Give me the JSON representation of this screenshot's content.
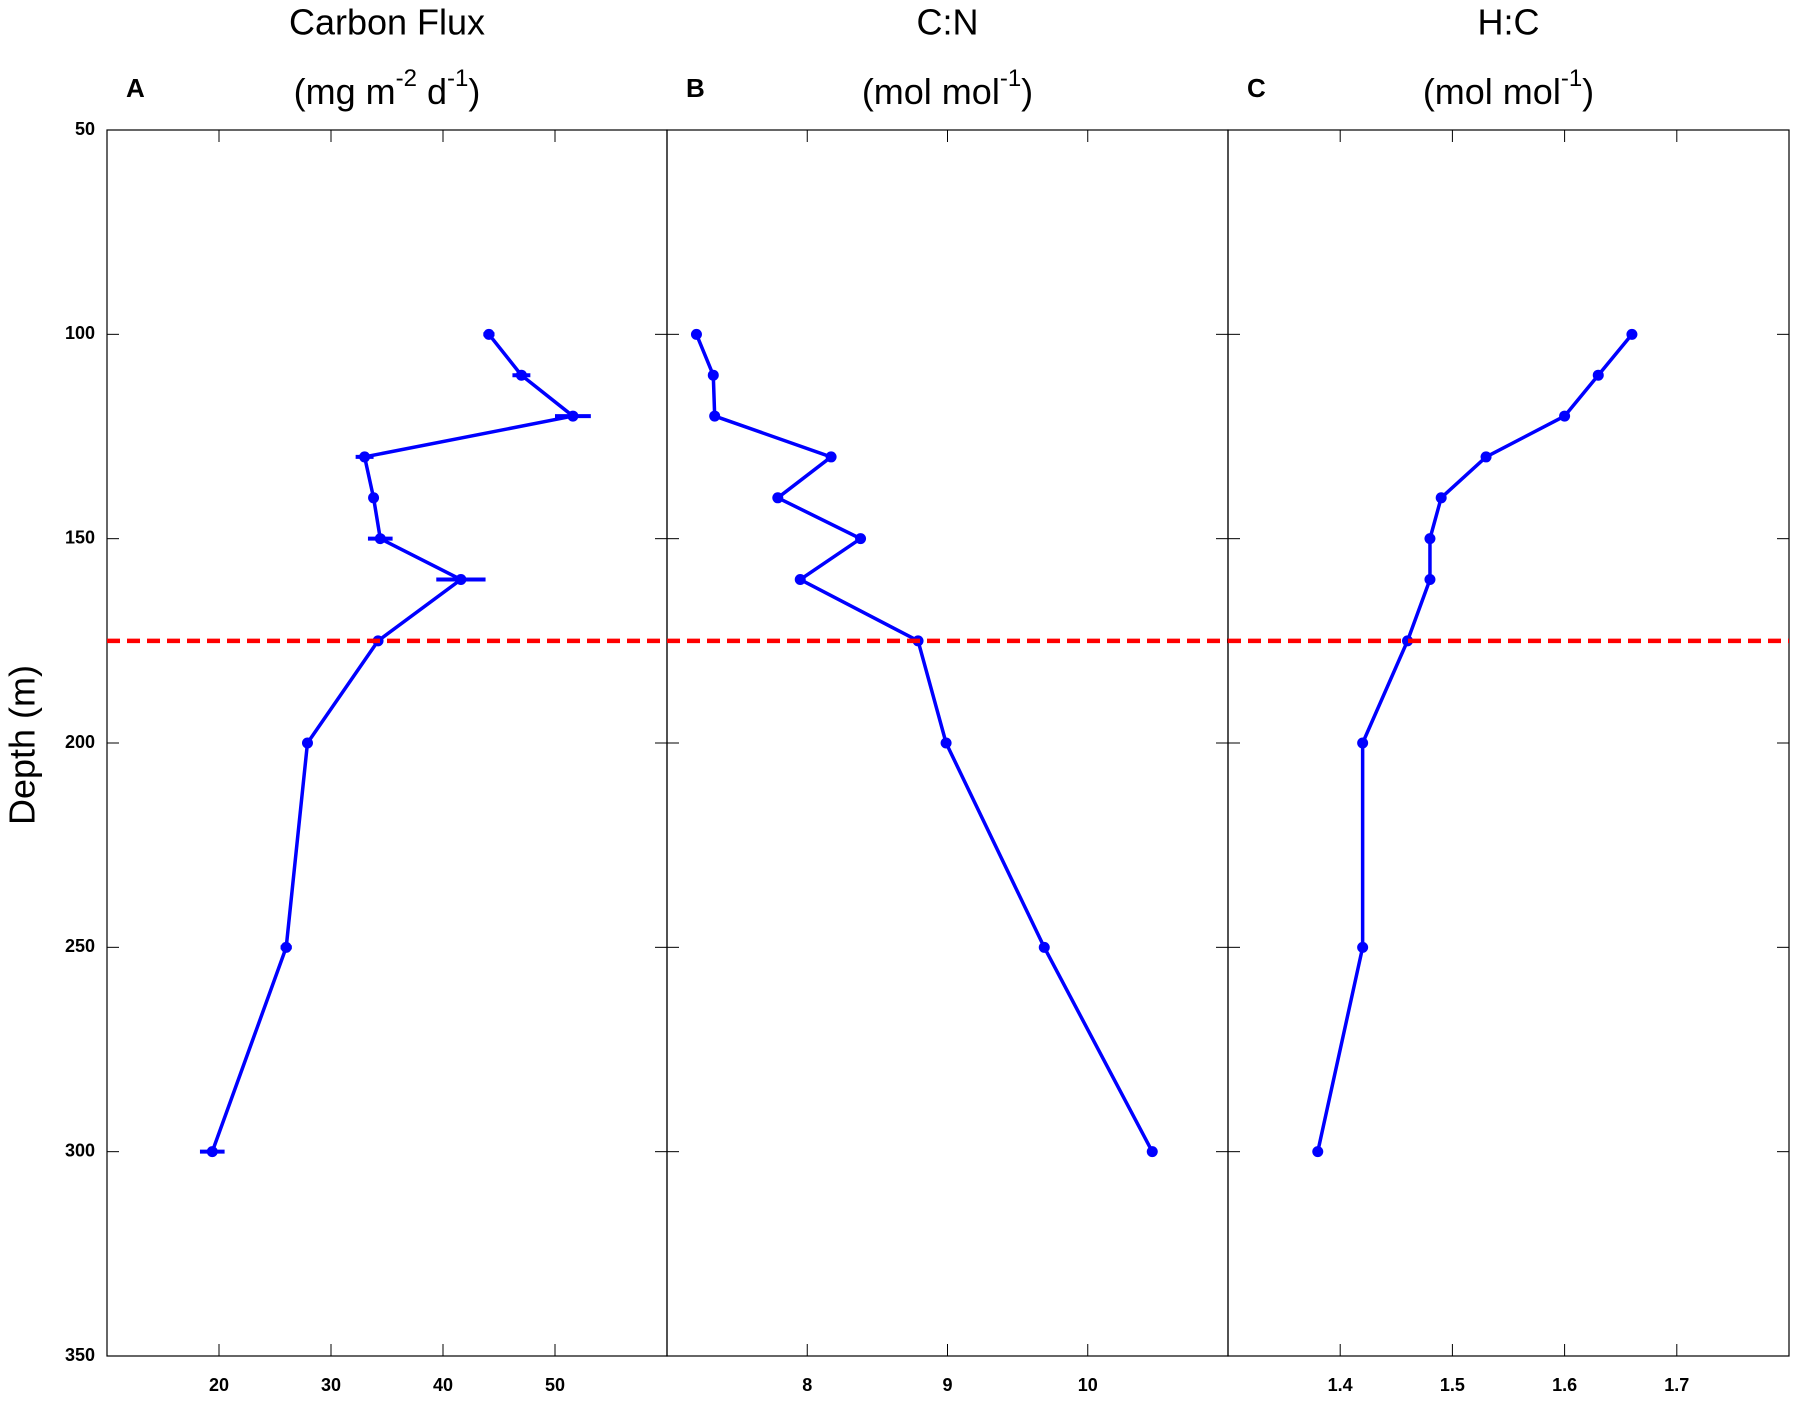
{
  "chart_data": [
    {
      "type": "line",
      "panel_label": "A",
      "title": "Carbon Flux",
      "unit": [
        "(mg m",
        "-2",
        " d",
        "-1",
        ")"
      ],
      "ylabel": "Depth (m)",
      "y": [
        100,
        110,
        120,
        130,
        140,
        150,
        160,
        175,
        200,
        250,
        300
      ],
      "ylim": [
        350,
        50
      ],
      "yticks": [
        50,
        100,
        150,
        200,
        250,
        300,
        350
      ],
      "xlim": [
        10,
        60
      ],
      "xticks": [
        20,
        30,
        40,
        50
      ],
      "series": [
        {
          "color": "#0000ff",
          "values": [
            44.1,
            47,
            51.6,
            33,
            33.8,
            34.4,
            41.6,
            34.2,
            27.9,
            26,
            19.4
          ],
          "errors": [
            0.5,
            0.8,
            1.6,
            0.8,
            0.4,
            1.1,
            2.2,
            0.4,
            0.4,
            0.5,
            1.1
          ]
        }
      ],
      "reference_line": {
        "y": 175,
        "color": "#ff0000",
        "style": "dashed"
      }
    },
    {
      "type": "line",
      "panel_label": "B",
      "title": "C:N",
      "unit": [
        "(mol mol",
        "-1",
        ")"
      ],
      "y": [
        100,
        110,
        120,
        130,
        140,
        150,
        160,
        175,
        200,
        250,
        300
      ],
      "ylim": [
        350,
        50
      ],
      "xlim": [
        7,
        11
      ],
      "xticks": [
        8,
        9,
        10
      ],
      "series": [
        {
          "color": "#0000ff",
          "values": [
            7.21,
            7.33,
            7.34,
            8.17,
            7.79,
            8.38,
            7.95,
            8.79,
            8.99,
            9.69,
            10.46
          ]
        }
      ],
      "reference_line": {
        "y": 175,
        "color": "#ff0000",
        "style": "dashed"
      }
    },
    {
      "type": "line",
      "panel_label": "C",
      "title": "H:C",
      "unit": [
        "(mol mol",
        "-1",
        ")"
      ],
      "y": [
        100,
        110,
        120,
        130,
        140,
        150,
        160,
        175,
        200,
        250,
        300
      ],
      "ylim": [
        350,
        50
      ],
      "xlim": [
        1.3,
        1.8
      ],
      "xticks": [
        1.4,
        1.5,
        1.6,
        1.7
      ],
      "series": [
        {
          "color": "#0000ff",
          "values": [
            1.66,
            1.63,
            1.6,
            1.53,
            1.49,
            1.48,
            1.48,
            1.46,
            1.42,
            1.42,
            1.38
          ]
        }
      ],
      "reference_line": {
        "y": 175,
        "color": "#ff0000",
        "style": "dashed"
      }
    }
  ]
}
